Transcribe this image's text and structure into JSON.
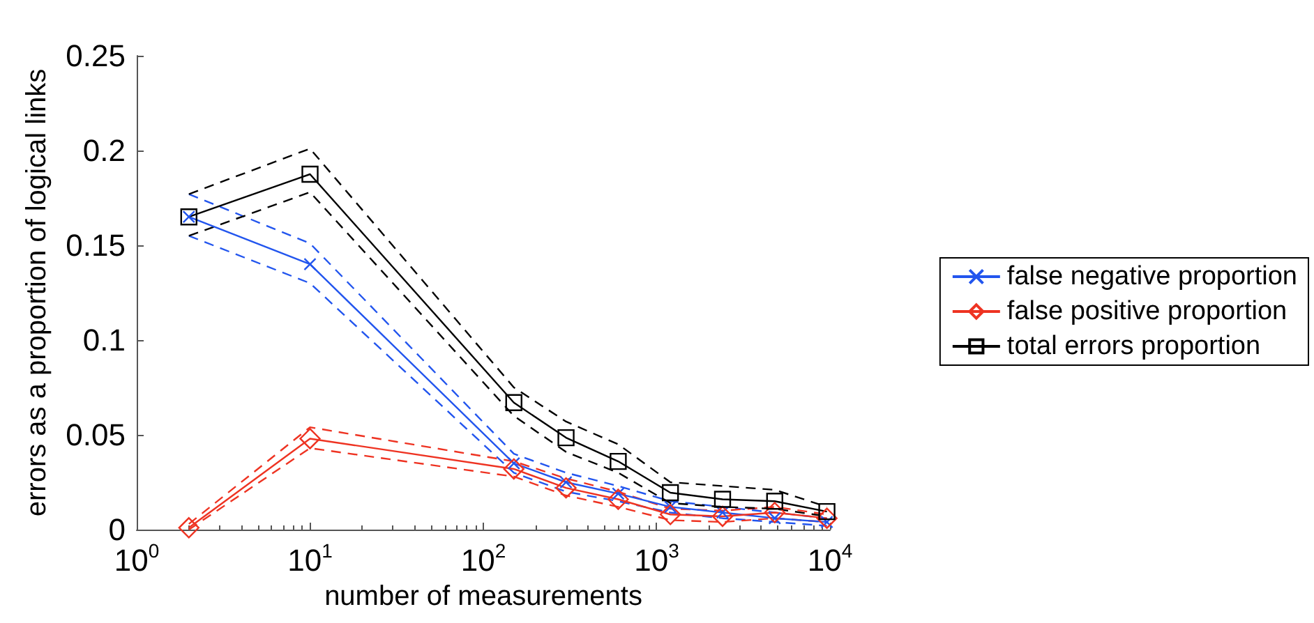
{
  "chart_data": {
    "type": "line",
    "xlabel": "number of measurements",
    "ylabel": "errors as a proportion of logical links",
    "x": [
      2,
      10,
      150,
      300,
      600,
      1200,
      2400,
      4800,
      9600
    ],
    "series": [
      {
        "name": "false negative proportion",
        "color": "#2255ee",
        "marker": "cross",
        "values": [
          0.165,
          0.14,
          0.035,
          0.025,
          0.019,
          0.012,
          0.009,
          0.006,
          0.004
        ]
      },
      {
        "color": "#2255ee",
        "marker": "none",
        "line_style": "dashed",
        "values": [
          0.177,
          0.151,
          0.04,
          0.03,
          0.023,
          0.015,
          0.012,
          0.009,
          0.006
        ]
      },
      {
        "color": "#2255ee",
        "marker": "none",
        "line_style": "dashed",
        "values": [
          0.155,
          0.13,
          0.03,
          0.02,
          0.015,
          0.009,
          0.006,
          0.004,
          0.002
        ]
      },
      {
        "name": "false positive proportion",
        "color": "#ee3322",
        "marker": "diamond",
        "values": [
          0.001,
          0.048,
          0.032,
          0.022,
          0.016,
          0.008,
          0.007,
          0.009,
          0.006
        ]
      },
      {
        "color": "#ee3322",
        "marker": "none",
        "line_style": "dashed",
        "values": [
          0.003,
          0.054,
          0.036,
          0.027,
          0.02,
          0.011,
          0.01,
          0.012,
          0.008
        ]
      },
      {
        "color": "#ee3322",
        "marker": "none",
        "line_style": "dashed",
        "values": [
          0,
          0.043,
          0.028,
          0.018,
          0.012,
          0.005,
          0.004,
          0.006,
          0.004
        ]
      },
      {
        "name": "total errors proportion",
        "color": "#000000",
        "marker": "square",
        "values": [
          0.165,
          0.1875,
          0.067,
          0.0485,
          0.036,
          0.0195,
          0.016,
          0.015,
          0.0095
        ]
      },
      {
        "color": "#000000",
        "marker": "none",
        "line_style": "dashed",
        "values": [
          0.177,
          0.201,
          0.075,
          0.057,
          0.045,
          0.025,
          0.023,
          0.021,
          0.012
        ]
      },
      {
        "color": "#000000",
        "marker": "none",
        "line_style": "dashed",
        "values": [
          0.155,
          0.178,
          0.06,
          0.041,
          0.03,
          0.014,
          0.012,
          0.011,
          0.007
        ]
      }
    ],
    "log": "x",
    "xlim": [
      1,
      10000
    ],
    "xticks": [
      {
        "value": 1,
        "label": "10$^{0}$"
      },
      {
        "value": 10,
        "label": "10$^{1}$"
      },
      {
        "value": 100,
        "label": "10$^{2}$"
      },
      {
        "value": 1000,
        "label": "10$^{3}$"
      },
      {
        "value": 10000,
        "label": "10$^{4}$"
      }
    ],
    "ylim": [
      0,
      0.25
    ],
    "yticks": [
      0,
      0.05,
      0.1,
      0.15,
      0.2,
      0.25
    ],
    "grid": false,
    "legend": "right",
    "line_style": "solid"
  }
}
